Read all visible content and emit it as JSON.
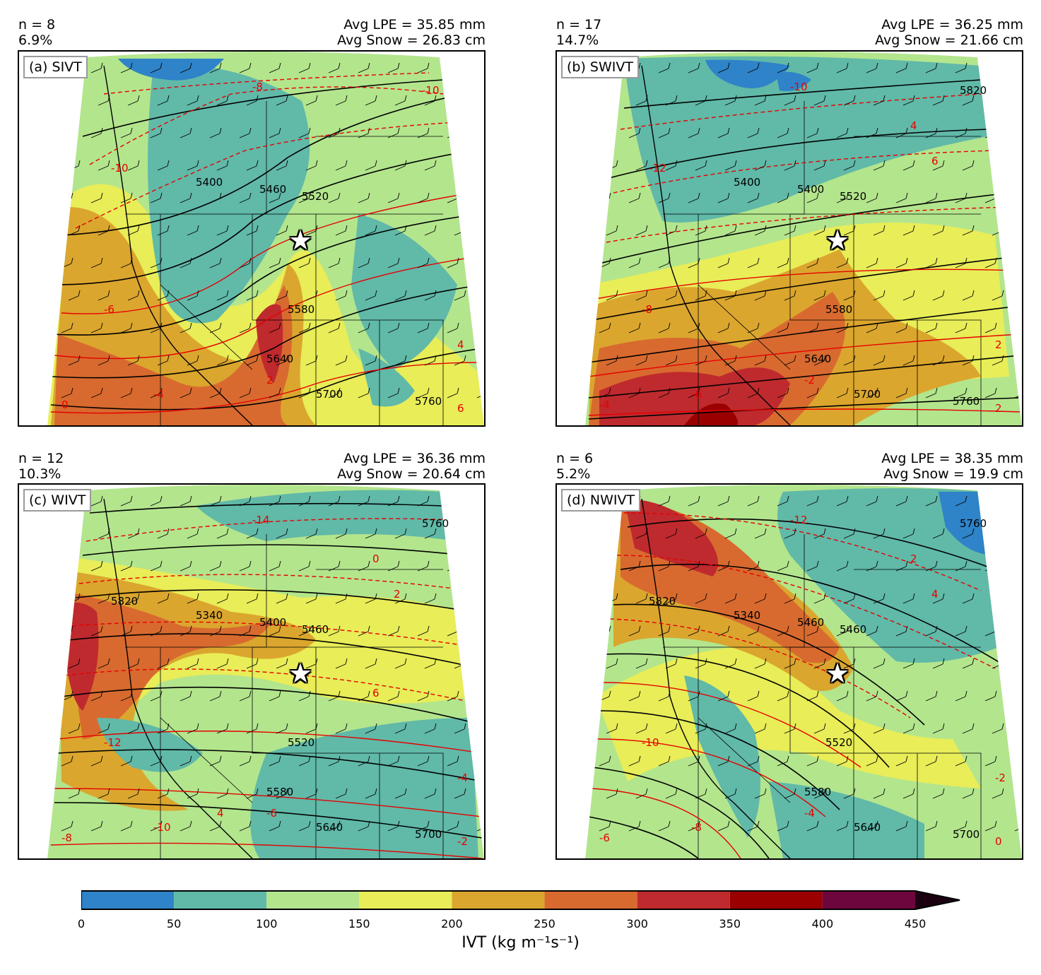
{
  "panels": [
    {
      "id": "a",
      "n_text": "n = 8",
      "pct_text": "6.9%",
      "lpe_text": "Avg LPE = 35.85 mm",
      "snow_text": "Avg Snow = 26.83 cm",
      "label": "(a) SIVT",
      "contour_labels": [
        "5400",
        "5460",
        "5520",
        "5580",
        "5640",
        "5700",
        "5760",
        "-10",
        "-10",
        "-8",
        "-6",
        "-4",
        "0",
        "2",
        "4",
        "6"
      ]
    },
    {
      "id": "b",
      "n_text": "n = 17",
      "pct_text": "14.7%",
      "lpe_text": "Avg LPE = 36.25 mm",
      "snow_text": "Avg Snow = 21.66 cm",
      "label": "(b) SWIVT",
      "contour_labels": [
        "5400",
        "5400",
        "5520",
        "5580",
        "5640",
        "5700",
        "5760",
        "5820",
        "-12",
        "-10",
        "-8",
        "-6",
        "-4",
        "-2",
        "2",
        "2",
        "4",
        "6"
      ]
    },
    {
      "id": "c",
      "n_text": "n = 12",
      "pct_text": "10.3%",
      "lpe_text": "Avg LPE = 36.36 mm",
      "snow_text": "Avg Snow = 20.64 cm",
      "label": "(c) WIVT",
      "contour_labels": [
        "5340",
        "5400",
        "5460",
        "5520",
        "5580",
        "5640",
        "5700",
        "5760",
        "5820",
        "-14",
        "-12",
        "-10",
        "-8",
        "-6",
        "-4",
        "-2",
        "0",
        "2",
        "4",
        "6"
      ]
    },
    {
      "id": "d",
      "n_text": "n = 6",
      "pct_text": "5.2%",
      "lpe_text": "Avg LPE = 38.35 mm",
      "snow_text": "Avg Snow = 19.9 cm",
      "label": "(d) NWIVT",
      "contour_labels": [
        "5340",
        "5460",
        "5460",
        "5520",
        "5580",
        "5640",
        "5700",
        "5760",
        "5820",
        "-12",
        "-10",
        "-8",
        "-6",
        "-4",
        "-2",
        "0",
        "2",
        "4"
      ]
    }
  ],
  "colorbar": {
    "title": "IVT (kg m⁻¹s⁻¹)",
    "ticks": [
      "0",
      "50",
      "100",
      "150",
      "200",
      "250",
      "300",
      "350",
      "400",
      "450"
    ],
    "colors": [
      "#2f83c8",
      "#61b9a8",
      "#b3e58d",
      "#e8ed58",
      "#dba62e",
      "#d86a2f",
      "#bf2a2e",
      "#9a0000",
      "#6e063e"
    ],
    "extend_color": "#1a0010"
  },
  "colors": {
    "ivt_0": "#2f83c8",
    "ivt_50": "#61b9a8",
    "ivt_100": "#b3e58d",
    "ivt_150": "#e8ed58",
    "ivt_200": "#dba62e",
    "ivt_250": "#d86a2f",
    "ivt_300": "#bf2a2e",
    "ivt_350": "#9a0000",
    "height_contour": "#000000",
    "temp_contour": "#e60000"
  },
  "icons": {
    "site_marker": "star-icon"
  }
}
